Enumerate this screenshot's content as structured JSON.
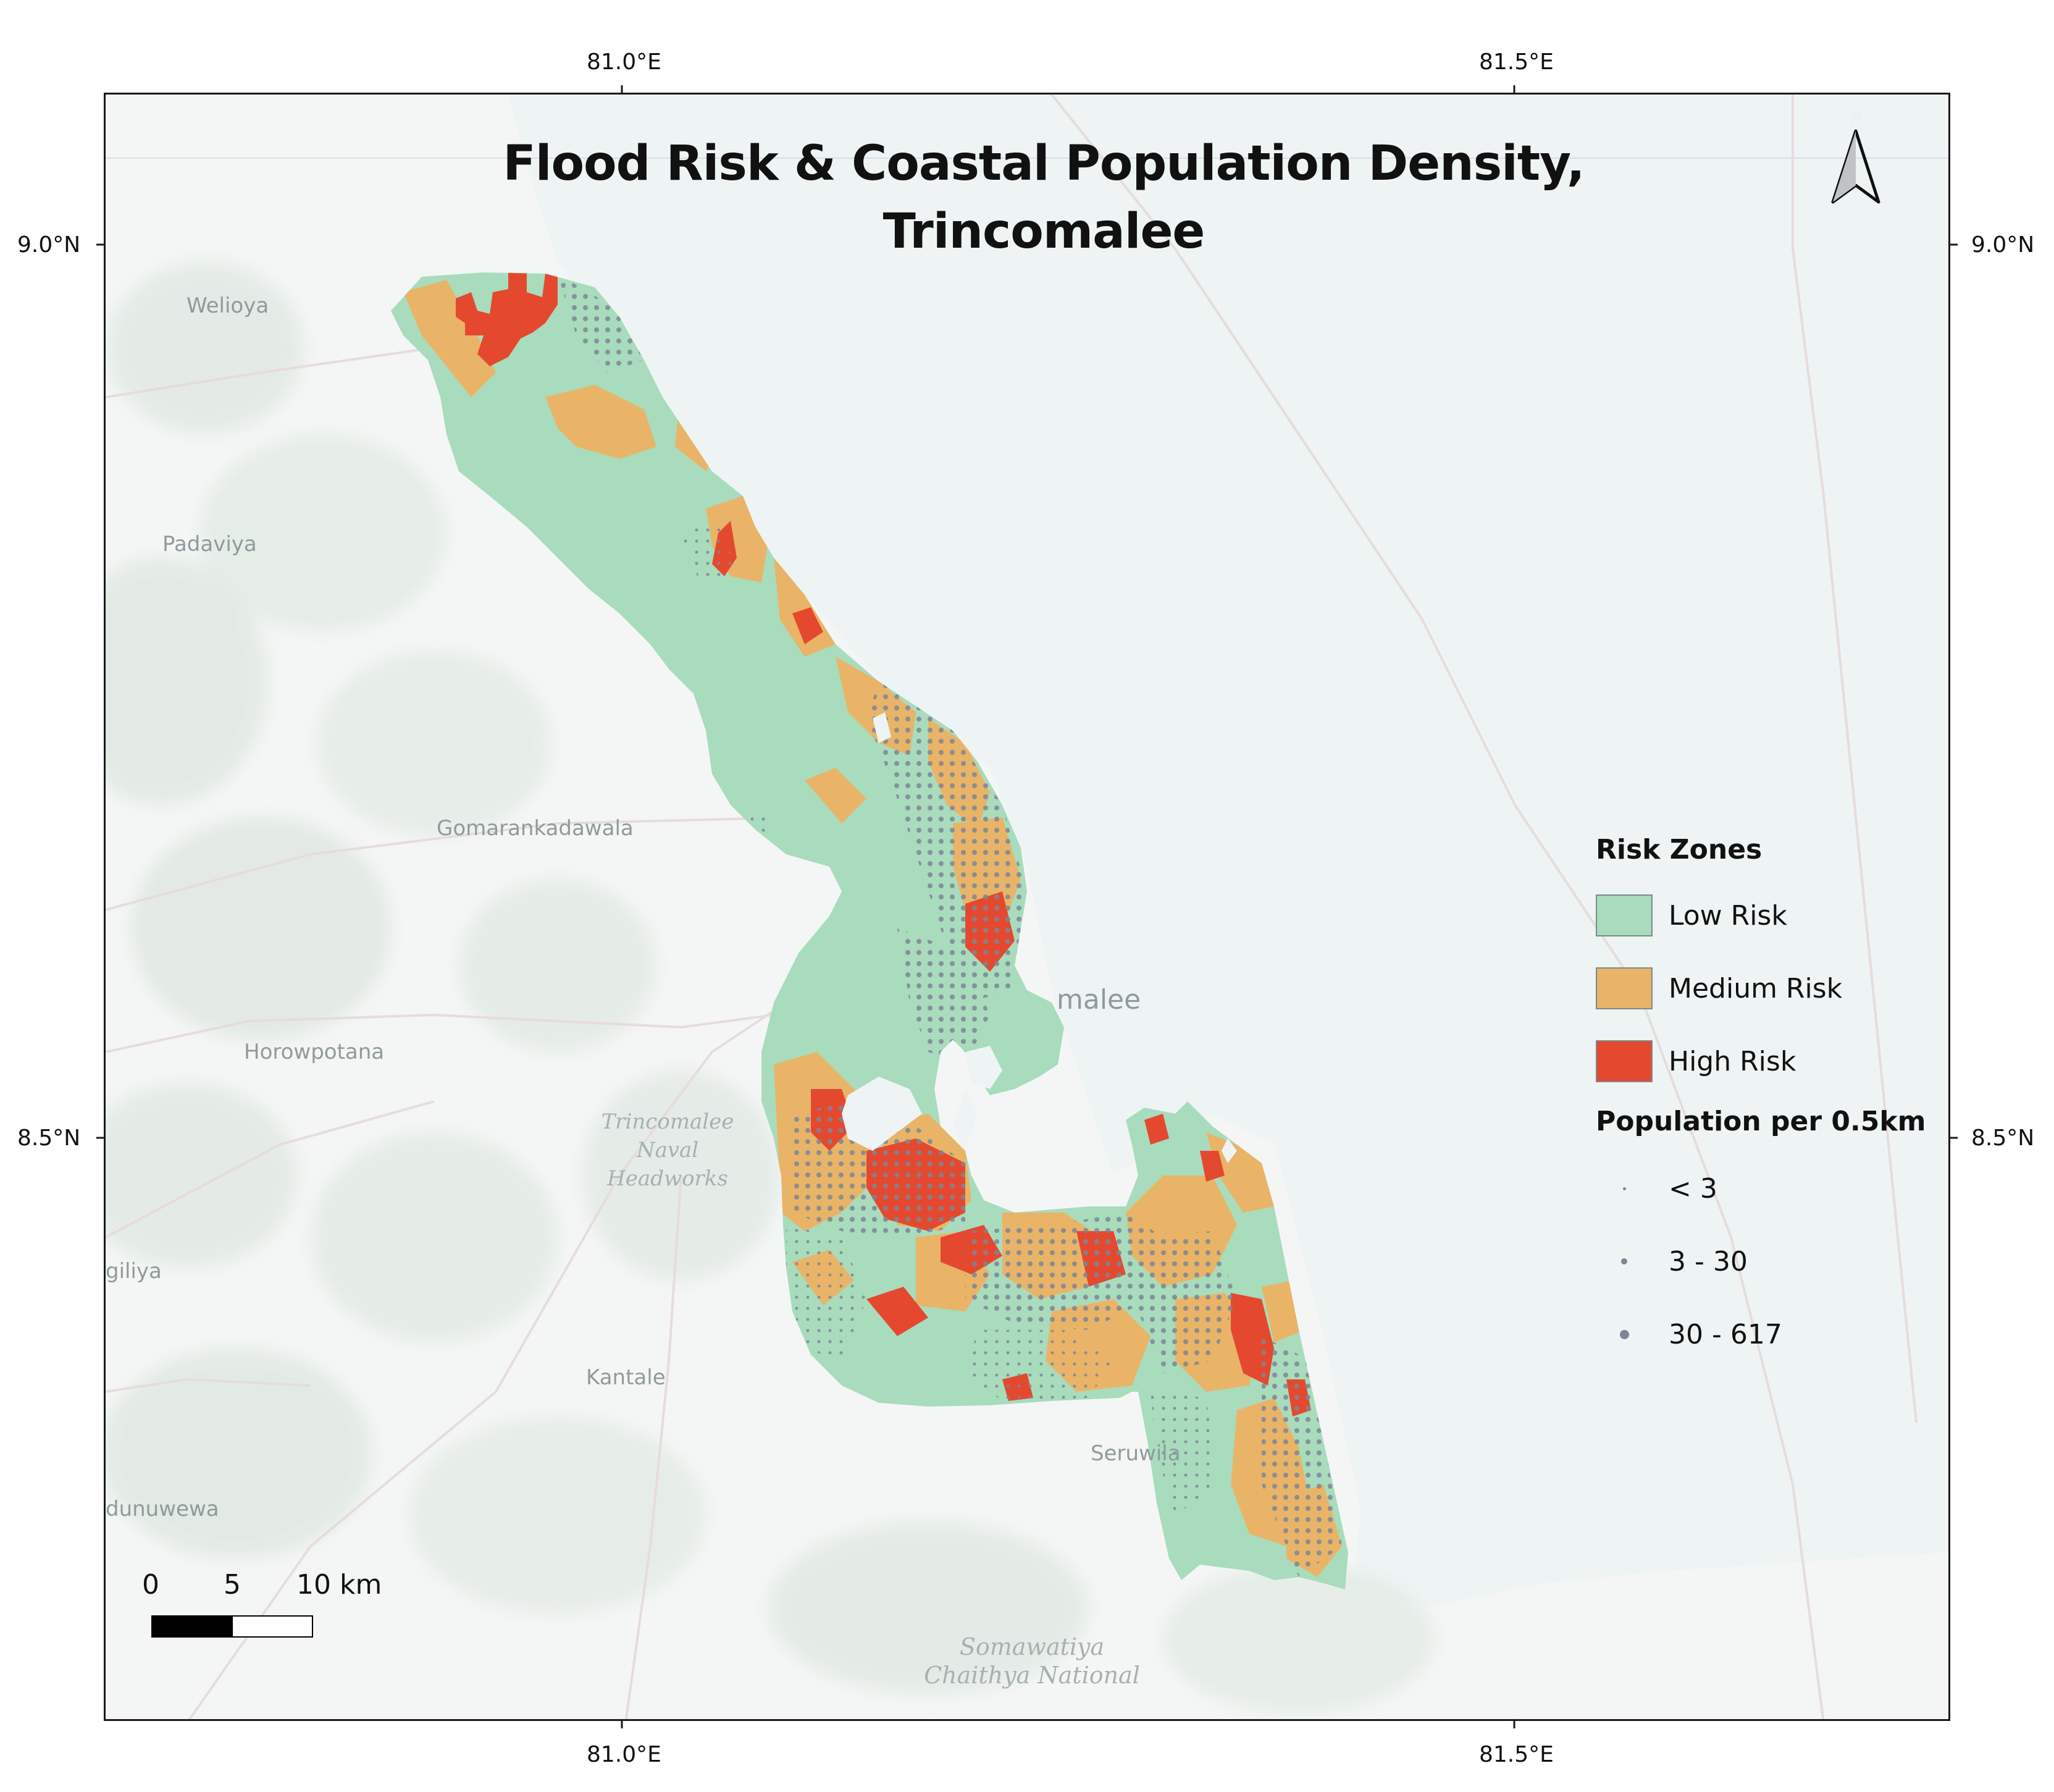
{
  "title_line1": "Flood Risk & Coastal Population Density,",
  "title_line2": "Trincomalee",
  "axes": {
    "x_ticks": [
      {
        "value": 81.0,
        "label": "81.0°E"
      },
      {
        "value": 81.5,
        "label": "81.5°E"
      }
    ],
    "y_ticks": [
      {
        "value": 9.0,
        "label": "9.0°N"
      },
      {
        "value": 8.5,
        "label": "8.5°N"
      }
    ],
    "lon_range": [
      80.71,
      81.77
    ],
    "lat_range": [
      8.28,
      9.09
    ]
  },
  "place_labels": [
    {
      "name": "Welioya"
    },
    {
      "name": "Padaviya"
    },
    {
      "name": "Gomarankadawala"
    },
    {
      "name": "Horowpotana"
    },
    {
      "name": "Trincomalee Naval Headworks"
    },
    {
      "name": "giliya"
    },
    {
      "name": "Kantale"
    },
    {
      "name": "dunuwewa"
    },
    {
      "name": "Seruwila"
    },
    {
      "name": "malee"
    },
    {
      "name": "Somawatiya Chaithya National"
    }
  ],
  "legend": {
    "risk_title": "Risk Zones",
    "risk_items": [
      {
        "label": "Low Risk",
        "color": "#a8dcbc"
      },
      {
        "label": "Medium Risk",
        "color": "#e9b467"
      },
      {
        "label": "High Risk",
        "color": "#e4492f"
      }
    ],
    "pop_title": "Population per 0.5km",
    "pop_items": [
      {
        "label": "< 3",
        "size": "small"
      },
      {
        "label": "3 - 30",
        "size": "medium"
      },
      {
        "label": "30 - 617",
        "size": "large"
      }
    ]
  },
  "scale_bar": {
    "labels": [
      "0",
      "5",
      "10 km"
    ],
    "unit": "km"
  },
  "north_arrow": {
    "label": "N",
    "icon": "north-arrow-icon"
  },
  "colors": {
    "low": "#a8dcbc",
    "medium": "#e9b467",
    "high": "#e4492f",
    "dots": "#7d8695",
    "sea": "#eef4f4",
    "land": "#f4f6f5"
  }
}
